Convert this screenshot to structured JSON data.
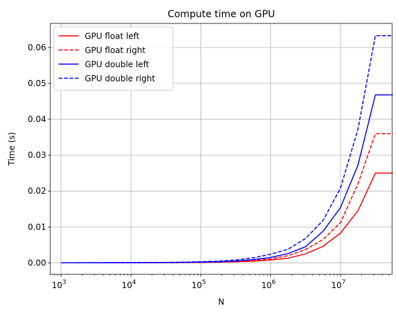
{
  "chart_data": {
    "type": "line",
    "title": "Compute time on GPU",
    "xlabel": "N",
    "ylabel": "Time (s)",
    "xscale": "log",
    "xlim": [
      700,
      55000000
    ],
    "ylim": [
      -0.0032,
      0.0667
    ],
    "grid": true,
    "legend_position": "top-left",
    "x_ticks": [
      {
        "value": 1000,
        "base": "10",
        "exp": "3"
      },
      {
        "value": 10000,
        "base": "10",
        "exp": "4"
      },
      {
        "value": 100000,
        "base": "10",
        "exp": "5"
      },
      {
        "value": 1000000,
        "base": "10",
        "exp": "6"
      },
      {
        "value": 10000000,
        "base": "10",
        "exp": "7"
      }
    ],
    "y_ticks": [
      {
        "value": 0.0,
        "label": "0.00"
      },
      {
        "value": 0.01,
        "label": "0.01"
      },
      {
        "value": 0.02,
        "label": "0.02"
      },
      {
        "value": 0.03,
        "label": "0.03"
      },
      {
        "value": 0.04,
        "label": "0.04"
      },
      {
        "value": 0.05,
        "label": "0.05"
      },
      {
        "value": 0.06,
        "label": "0.06"
      }
    ],
    "x": [
      1000,
      1778,
      3162,
      5623,
      10000,
      17783,
      31623,
      56234,
      100000,
      177828,
      316228,
      562341,
      1000000,
      1778279,
      3162278,
      5623413,
      10000000,
      17782794,
      31622777,
      56234133
    ],
    "series": [
      {
        "name": "GPU float left",
        "color": "#ff0000",
        "dash": "solid",
        "values": [
          2e-05,
          2e-05,
          2e-05,
          3e-05,
          3e-05,
          4e-05,
          5e-05,
          8e-05,
          0.00012,
          0.00018,
          0.0003,
          0.00048,
          0.0008,
          0.0013,
          0.0025,
          0.0046,
          0.0083,
          0.0145,
          0.025,
          0.025
        ]
      },
      {
        "name": "GPU float right",
        "color": "#ff0000",
        "dash": "dashed",
        "values": [
          2e-05,
          2e-05,
          2e-05,
          3e-05,
          4e-05,
          5e-05,
          7e-05,
          0.0001,
          0.00016,
          0.00025,
          0.0004,
          0.00066,
          0.0011,
          0.002,
          0.0037,
          0.0065,
          0.0112,
          0.022,
          0.036,
          0.036
        ]
      },
      {
        "name": "GPU double left",
        "color": "#0000ff",
        "dash": "solid",
        "values": [
          2e-05,
          2e-05,
          3e-05,
          4e-05,
          5e-05,
          6e-05,
          9e-05,
          0.00014,
          0.0002,
          0.0003,
          0.0005,
          0.0009,
          0.0015,
          0.0026,
          0.0045,
          0.0088,
          0.0154,
          0.0272,
          0.0468,
          0.0468
        ]
      },
      {
        "name": "GPU double right",
        "color": "#0000ff",
        "dash": "dashed",
        "values": [
          2e-05,
          3e-05,
          4e-05,
          5e-05,
          7e-05,
          9e-05,
          0.00013,
          0.0002,
          0.0003,
          0.00048,
          0.0008,
          0.0014,
          0.0024,
          0.0038,
          0.0068,
          0.0118,
          0.0208,
          0.0372,
          0.0633,
          0.0633
        ]
      }
    ]
  }
}
